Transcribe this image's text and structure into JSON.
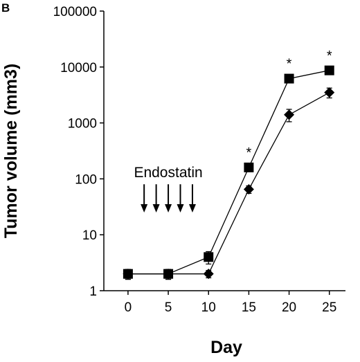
{
  "chart_data": {
    "type": "line",
    "panel_label": "B",
    "xlabel": "Day",
    "ylabel": "Tumor volume (mm3)",
    "y_scale": "log",
    "xlim": [
      -3,
      27
    ],
    "ylim": [
      1,
      100000
    ],
    "x_ticks": [
      0,
      5,
      10,
      15,
      20,
      25
    ],
    "y_ticks": [
      1,
      10,
      100,
      1000,
      10000,
      100000
    ],
    "grid": false,
    "series": [
      {
        "marker": "square",
        "x": [
          0,
          5,
          10,
          15,
          20,
          25
        ],
        "values": [
          2,
          2,
          4,
          160,
          6200,
          8700
        ],
        "error": [
          0.4,
          0.4,
          1.0,
          25,
          1000,
          1300
        ]
      },
      {
        "marker": "diamond",
        "x": [
          0,
          5,
          10,
          15,
          20,
          25
        ],
        "values": [
          2,
          2,
          2,
          65,
          1400,
          3500
        ],
        "error": [
          0.4,
          0.4,
          0.3,
          10,
          350,
          700
        ]
      }
    ],
    "annotations": {
      "treatment_label": "Endostatin",
      "treatment_days": [
        2,
        3.5,
        5,
        6.5,
        8
      ],
      "significance_marker": "*",
      "significance_days": [
        15,
        20,
        25
      ]
    }
  }
}
